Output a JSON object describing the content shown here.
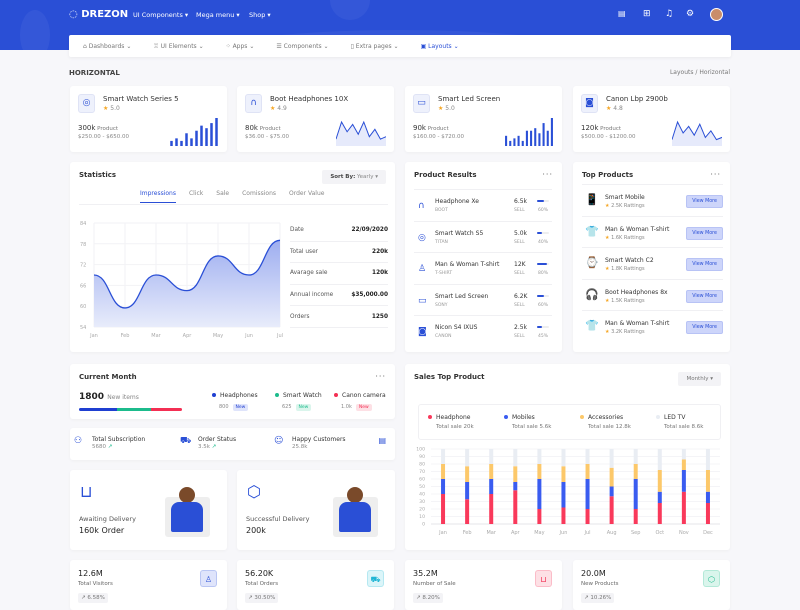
{
  "header": {
    "logo": "DREZON",
    "menu": [
      "UI Components ▾",
      "Mega menu ▾",
      "Shop ▾"
    ],
    "icons": [
      "us-flag-icon",
      "apps-grid-icon",
      "bell-icon",
      "settings-icon",
      "avatar"
    ]
  },
  "nav": [
    {
      "label": "Dashboards",
      "icon": "home-icon"
    },
    {
      "label": "UI Elements",
      "icon": "gift-icon"
    },
    {
      "label": "Apps",
      "icon": "apps-icon"
    },
    {
      "label": "Components",
      "icon": "layers-icon"
    },
    {
      "label": "Extra pages",
      "icon": "file-icon"
    },
    {
      "label": "Layouts",
      "icon": "layout-icon",
      "active": true
    }
  ],
  "page": {
    "title": "HORIZONTAL",
    "breadcrumb": [
      "Layouts",
      "Horizontal"
    ],
    "breadcrumb_sep": "/"
  },
  "products": [
    {
      "name": "Smart Watch Series 5",
      "rating": "5.0",
      "value": "300k",
      "unit": "Product",
      "range": "$250.00 - $650.00",
      "icon": "watch-icon",
      "spark": "bar",
      "points": [
        2,
        3,
        2,
        5,
        3,
        6,
        8,
        7,
        9,
        11
      ]
    },
    {
      "name": "Boot Headphones 10X",
      "rating": "4.9",
      "value": "80k",
      "unit": "Product",
      "range": "$36.00 - $75.00",
      "icon": "headphones-icon",
      "spark": "line",
      "points": [
        2,
        9,
        5,
        8,
        4,
        9,
        3,
        6,
        2,
        3
      ]
    },
    {
      "name": "Smart Led Screen",
      "rating": "5.0",
      "value": "90k",
      "unit": "Product",
      "range": "$160.00 - $720.00",
      "icon": "monitor-icon",
      "spark": "bar",
      "points": [
        4,
        2,
        3,
        4,
        2,
        6,
        6,
        7,
        5,
        9,
        6,
        11
      ]
    },
    {
      "name": "Canon Lbp 2900b",
      "rating": "4.8",
      "value": "120k",
      "unit": "Product",
      "range": "$500.00 - $1200.00",
      "icon": "camera-icon",
      "spark": "line",
      "points": [
        2,
        10,
        5,
        8,
        4,
        9,
        3,
        6,
        2,
        3
      ]
    }
  ],
  "statistics": {
    "title": "Statistics",
    "sort_label": "Sort By:",
    "sort_value": "Yearly",
    "tabs": [
      "Impressions",
      "Click",
      "Sale",
      "Comissions",
      "Order Value"
    ],
    "table": [
      {
        "k": "Date",
        "v": "22/09/2020"
      },
      {
        "k": "Total user",
        "v": "220k"
      },
      {
        "k": "Avarage sale",
        "v": "120k"
      },
      {
        "k": "Annual income",
        "v": "$35,000.00"
      },
      {
        "k": "Orders",
        "v": "1250"
      }
    ]
  },
  "product_results": {
    "title": "Product Results",
    "items": [
      {
        "name": "Headphone Xe",
        "brand": "BOOT",
        "value": "6.5k",
        "label": "SELL",
        "percent": "60%",
        "pct": 60,
        "icon": "headphones-icon"
      },
      {
        "name": "Smart Watch S5",
        "brand": "TITAN",
        "value": "5.0k",
        "label": "SELL",
        "percent": "40%",
        "pct": 40,
        "icon": "watch-icon"
      },
      {
        "name": "Man & Woman T-shirt",
        "brand": "T-SHIRT",
        "value": "12K",
        "label": "SELL",
        "percent": "80%",
        "pct": 80,
        "icon": "tshirt-icon"
      },
      {
        "name": "Smart Led Screen",
        "brand": "SONY",
        "value": "6.2K",
        "label": "SELL",
        "percent": "60%",
        "pct": 60,
        "icon": "monitor-icon"
      },
      {
        "name": "Nicon S4 IXUS",
        "brand": "CANON",
        "value": "2.5k",
        "label": "SELL",
        "percent": "45%",
        "pct": 45,
        "icon": "camera-icon"
      }
    ]
  },
  "top_products": {
    "title": "Top Products",
    "button": "View More",
    "items": [
      {
        "name": "Smart Mobile",
        "ratings": "2.5K Rattings",
        "img": "📱"
      },
      {
        "name": "Man & Woman T-shirt",
        "ratings": "1.6K Rattings",
        "img": "👕"
      },
      {
        "name": "Smart Watch C2",
        "ratings": "1.8K Rattings",
        "img": "⌚"
      },
      {
        "name": "Boot Headphones 8x",
        "ratings": "1.5K Rattings",
        "img": "🎧"
      },
      {
        "name": "Man & Woman T-shirt",
        "ratings": "3.2K Rattings",
        "img": "👕"
      }
    ]
  },
  "current_month": {
    "title": "Current Month",
    "total": "1800",
    "total_label": "New items",
    "legend": [
      {
        "name": "Headphones",
        "value": "800",
        "badge": "New",
        "color": "#1f3fd1",
        "share": 37
      },
      {
        "name": "Smart Watch",
        "value": "625",
        "badge": "New",
        "color": "#1cbb8c",
        "share": 33
      },
      {
        "name": "Canon camera",
        "value": "1.0k",
        "badge": "New",
        "color": "#f32f53",
        "share": 30
      }
    ]
  },
  "summary": [
    {
      "label": "Total Subscription",
      "value": "5680",
      "icon": "users-icon",
      "trend": true
    },
    {
      "label": "Order Status",
      "value": "3.5k",
      "icon": "cart-icon",
      "trend": true
    },
    {
      "label": "Happy Customers",
      "value": "25.8k",
      "icon": "smile-icon",
      "trend": false
    }
  ],
  "deliveries": [
    {
      "label": "Awaiting Delivery",
      "value": "160k Order",
      "icon": "bag-icon"
    },
    {
      "label": "Successful Delivery",
      "value": "200k",
      "icon": "box-icon"
    }
  ],
  "bottom_stats": [
    {
      "value": "12.6M",
      "label": "Total Visitors",
      "percent": "6.58%",
      "icon": "user-icon",
      "color": "#2a4fd6",
      "bg": "#dfe4fb"
    },
    {
      "value": "56.20K",
      "label": "Total Orders",
      "percent": "30.50%",
      "icon": "cart-icon",
      "color": "#1fb5d4",
      "bg": "#dbf5f9"
    },
    {
      "value": "35.2M",
      "label": "Number of Sale",
      "percent": "8.20%",
      "icon": "bag-icon",
      "color": "#f32f53",
      "bg": "#fde0e5"
    },
    {
      "value": "20.0M",
      "label": "New Products",
      "percent": "10.26%",
      "icon": "box-icon",
      "color": "#1cbb8c",
      "bg": "#daf5ec"
    }
  ],
  "colors": {
    "primary": "#2a4fd6",
    "headphone": "#f9395b",
    "mobiles": "#3a5cf0",
    "accessories": "#fcc86a",
    "ledtv": "#e9edf3"
  },
  "chart_data": [
    {
      "type": "area",
      "title": "Statistics",
      "categories": [
        "Jan",
        "Feb",
        "Mar",
        "Apr",
        "May",
        "Jun",
        "Jul"
      ],
      "values": [
        69,
        59.5,
        69,
        64.5,
        74.5,
        69,
        79
      ],
      "ylim": [
        54,
        84
      ],
      "yticks": [
        84,
        78,
        72,
        66,
        60,
        54
      ],
      "grid": true
    },
    {
      "type": "bar",
      "stacked": true,
      "title": "Sales Top Product",
      "filter": "Monthly",
      "categories": [
        "Jan",
        "Feb",
        "Mar",
        "Apr",
        "May",
        "Jun",
        "Jul",
        "Aug",
        "Sep",
        "Oct",
        "Nov",
        "Dec"
      ],
      "ylim": [
        0,
        100
      ],
      "yticks": [
        100,
        90,
        80,
        70,
        60,
        50,
        40,
        30,
        20,
        10,
        0
      ],
      "series": [
        {
          "name": "Headphone",
          "total": "Total sale 20k",
          "values": [
            40,
            33,
            40,
            45,
            20,
            22,
            20,
            37,
            20,
            28,
            43,
            28
          ]
        },
        {
          "name": "Mobiles",
          "total": "Total sale 5.6k",
          "values": [
            20,
            23,
            20,
            11,
            40,
            34,
            40,
            13,
            40,
            15,
            29,
            15
          ]
        },
        {
          "name": "Accessories",
          "total": "Total sale 12.8k",
          "values": [
            20,
            21,
            20,
            21,
            20,
            21,
            20,
            25,
            20,
            29,
            14,
            29
          ]
        },
        {
          "name": "LED TV",
          "total": "Total sale 8.6k",
          "values": [
            20,
            23,
            20,
            23,
            20,
            23,
            20,
            25,
            20,
            28,
            14,
            28
          ]
        }
      ]
    }
  ]
}
